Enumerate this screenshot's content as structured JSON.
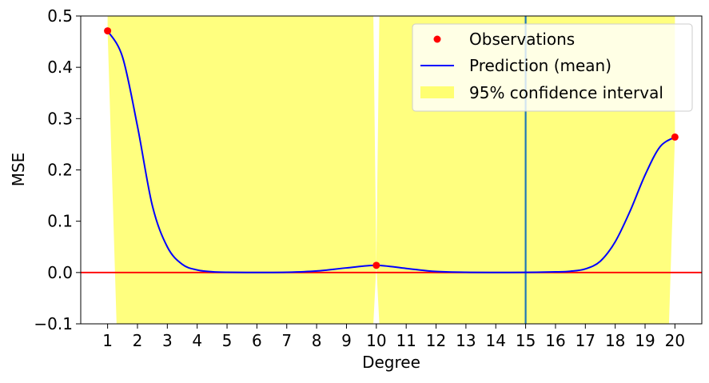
{
  "chart_data": {
    "type": "line",
    "title": "",
    "xlabel": "Degree",
    "ylabel": "MSE",
    "xlim": [
      0.1,
      20.9
    ],
    "ylim": [
      -0.1,
      0.5
    ],
    "xticks": [
      1,
      2,
      3,
      4,
      5,
      6,
      7,
      8,
      9,
      10,
      11,
      12,
      13,
      14,
      15,
      16,
      17,
      18,
      19,
      20
    ],
    "yticks": [
      -0.1,
      0.0,
      0.1,
      0.2,
      0.3,
      0.4,
      0.5
    ],
    "ytick_labels": [
      "−0.1",
      "0.0",
      "0.1",
      "0.2",
      "0.3",
      "0.4",
      "0.5"
    ],
    "grid": false,
    "legend_position": "top-right",
    "legend": {
      "observations": "Observations",
      "prediction": "Prediction (mean)",
      "interval": "95% confidence interval"
    },
    "observations": {
      "name": "Observations",
      "color": "#ff0000",
      "x": [
        1,
        10,
        20
      ],
      "y": [
        0.471,
        0.014,
        0.264
      ]
    },
    "prediction": {
      "name": "Prediction (mean)",
      "color": "#0000ff",
      "x": [
        1,
        1.5,
        2,
        2.5,
        3,
        3.5,
        4,
        4.5,
        5,
        6,
        7,
        8,
        9,
        10,
        11,
        12,
        13,
        14,
        15,
        16,
        16.5,
        17,
        17.5,
        18,
        18.5,
        19,
        19.5,
        20
      ],
      "y": [
        0.471,
        0.42,
        0.285,
        0.13,
        0.05,
        0.016,
        0.005,
        0.0015,
        0.0005,
        0.0002,
        0.0005,
        0.003,
        0.009,
        0.014,
        0.008,
        0.002,
        0.0005,
        0.0002,
        0.0003,
        0.0012,
        0.0025,
        0.007,
        0.022,
        0.06,
        0.12,
        0.19,
        0.245,
        0.264
      ]
    },
    "confidence_interval": {
      "name": "95% confidence interval",
      "color": "#ffff00",
      "opacity": 0.5,
      "x": [
        1,
        1.3,
        9.9,
        10,
        10.1,
        19.8,
        20
      ],
      "lower": [
        0.47,
        -0.1,
        -0.1,
        0.014,
        -0.1,
        -0.1,
        0.264
      ],
      "upper": [
        0.5,
        0.5,
        0.5,
        0.014,
        0.5,
        0.5,
        0.5
      ]
    },
    "hlines": [
      {
        "y": 0.0,
        "color": "#ff0000"
      }
    ],
    "vlines": [
      {
        "x": 15,
        "color": "#1f77b4"
      }
    ]
  }
}
